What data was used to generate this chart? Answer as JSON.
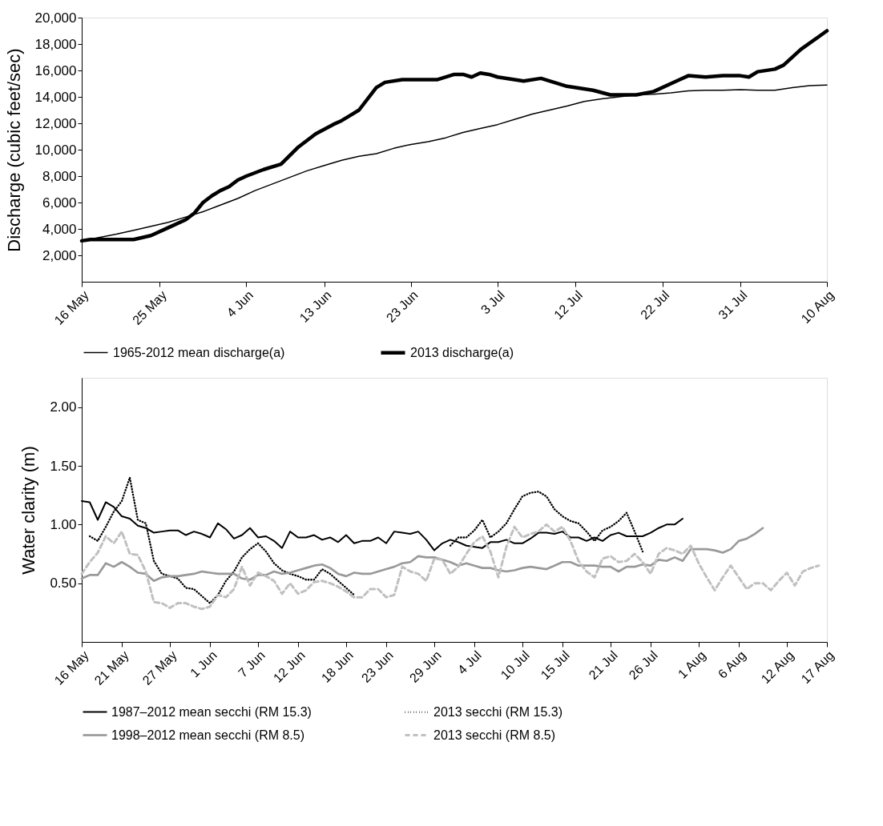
{
  "chart_data": [
    {
      "type": "line",
      "ylabel": "Discharge (cubic feet/sec)",
      "xlim": [
        "2013-05-16",
        "2013-08-10"
      ],
      "xticks": [
        {
          "value": "2013-05-16",
          "label": "16 May"
        },
        {
          "value": "2013-05-25",
          "label": "25 May"
        },
        {
          "value": "2013-06-04",
          "label": "4 Jun"
        },
        {
          "value": "2013-06-13",
          "label": "13 Jun"
        },
        {
          "value": "2013-06-23",
          "label": "23 Jun"
        },
        {
          "value": "2013-07-03",
          "label": "3 Jul"
        },
        {
          "value": "2013-07-12",
          "label": "12 Jul"
        },
        {
          "value": "2013-07-22",
          "label": "22 Jul"
        },
        {
          "value": "2013-07-31",
          "label": "31 Jul"
        },
        {
          "value": "2013-08-10",
          "label": "10 Aug"
        }
      ],
      "ylim": [
        0,
        20000
      ],
      "yticks": [
        {
          "value": 2000,
          "label": "2,000"
        },
        {
          "value": 4000,
          "label": "4,000"
        },
        {
          "value": 6000,
          "label": "6,000"
        },
        {
          "value": 8000,
          "label": "8,000"
        },
        {
          "value": 10000,
          "label": "10,000"
        },
        {
          "value": 12000,
          "label": "12,000"
        },
        {
          "value": 14000,
          "label": "14,000"
        },
        {
          "value": 16000,
          "label": "16,000"
        },
        {
          "value": 18000,
          "label": "18,000"
        },
        {
          "value": 20000,
          "label": "20,000"
        }
      ],
      "grid": false,
      "legend": "bottom",
      "marker": "none",
      "series": [
        {
          "name": "1965-2012 mean discharge(a)",
          "color": "#000000",
          "line_style": "solid",
          "x": [
            "2013-05-16",
            "2013-05-18",
            "2013-05-20",
            "2013-05-22",
            "2013-05-24",
            "2013-05-26",
            "2013-05-28",
            "2013-05-30",
            "2013-06-01",
            "2013-06-03",
            "2013-06-05",
            "2013-06-07",
            "2013-06-09",
            "2013-06-11",
            "2013-06-13",
            "2013-06-15",
            "2013-06-17",
            "2013-06-19",
            "2013-06-21",
            "2013-06-23",
            "2013-06-25",
            "2013-06-27",
            "2013-06-29",
            "2013-07-01",
            "2013-07-03",
            "2013-07-05",
            "2013-07-07",
            "2013-07-09",
            "2013-07-11",
            "2013-07-13",
            "2013-07-15",
            "2013-07-17",
            "2013-07-19",
            "2013-07-21",
            "2013-07-23",
            "2013-07-25",
            "2013-07-27",
            "2013-07-29",
            "2013-07-31",
            "2013-08-02",
            "2013-08-04",
            "2013-08-06",
            "2013-08-08",
            "2013-08-10"
          ],
          "values": [
            3100,
            3350,
            3600,
            3900,
            4200,
            4500,
            4900,
            5300,
            5800,
            6300,
            6900,
            7400,
            7900,
            8400,
            8800,
            9200,
            9500,
            9700,
            10100,
            10400,
            10600,
            10900,
            11300,
            11600,
            11900,
            12300,
            12700,
            13000,
            13300,
            13650,
            13850,
            14000,
            14150,
            14200,
            14300,
            14450,
            14500,
            14500,
            14550,
            14500,
            14500,
            14700,
            14850,
            14900
          ]
        },
        {
          "name": "2013 discharge(a)",
          "color": "#000000",
          "line_style": "solid",
          "x": [
            "2013-05-16",
            "2013-05-17",
            "2013-05-19",
            "2013-05-22",
            "2013-05-24",
            "2013-05-26",
            "2013-05-28",
            "2013-05-29",
            "2013-05-30",
            "2013-05-31",
            "2013-06-01",
            "2013-06-02",
            "2013-06-03",
            "2013-06-04",
            "2013-06-06",
            "2013-06-08",
            "2013-06-10",
            "2013-06-12",
            "2013-06-14",
            "2013-06-15",
            "2013-06-16",
            "2013-06-17",
            "2013-06-19",
            "2013-06-20",
            "2013-06-22",
            "2013-06-26",
            "2013-06-28",
            "2013-06-29",
            "2013-06-30",
            "2013-07-01",
            "2013-07-02",
            "2013-07-03",
            "2013-07-06",
            "2013-07-08",
            "2013-07-11",
            "2013-07-14",
            "2013-07-16",
            "2013-07-19",
            "2013-07-21",
            "2013-07-24",
            "2013-07-25",
            "2013-07-27",
            "2013-07-29",
            "2013-07-31",
            "2013-08-01",
            "2013-08-02",
            "2013-08-04",
            "2013-08-05",
            "2013-08-07",
            "2013-08-10"
          ],
          "values": [
            3100,
            3200,
            3200,
            3200,
            3500,
            4100,
            4700,
            5200,
            6000,
            6500,
            6900,
            7200,
            7700,
            8000,
            8500,
            8900,
            10200,
            11200,
            11900,
            12200,
            12600,
            13000,
            14700,
            15100,
            15300,
            15300,
            15700,
            15700,
            15500,
            15800,
            15700,
            15500,
            15200,
            15400,
            14800,
            14500,
            14150,
            14150,
            14400,
            15300,
            15600,
            15500,
            15600,
            15600,
            15500,
            15900,
            16100,
            16400,
            17600,
            19000
          ]
        }
      ]
    },
    {
      "type": "line",
      "ylabel": "Water clarity (m)",
      "xlim": [
        "2013-05-16",
        "2013-08-17"
      ],
      "xticks": [
        {
          "value": "2013-05-16",
          "label": "16 May"
        },
        {
          "value": "2013-05-21",
          "label": "21 May"
        },
        {
          "value": "2013-05-27",
          "label": "27 May"
        },
        {
          "value": "2013-06-01",
          "label": "1 Jun"
        },
        {
          "value": "2013-06-07",
          "label": "7 Jun"
        },
        {
          "value": "2013-06-12",
          "label": "12 Jun"
        },
        {
          "value": "2013-06-18",
          "label": "18 Jun"
        },
        {
          "value": "2013-06-23",
          "label": "23 Jun"
        },
        {
          "value": "2013-06-29",
          "label": "29 Jun"
        },
        {
          "value": "2013-07-04",
          "label": "4 Jul"
        },
        {
          "value": "2013-07-10",
          "label": "10 Jul"
        },
        {
          "value": "2013-07-15",
          "label": "15 Jul"
        },
        {
          "value": "2013-07-21",
          "label": "21 Jul"
        },
        {
          "value": "2013-07-26",
          "label": "26 Jul"
        },
        {
          "value": "2013-08-01",
          "label": "1 Aug"
        },
        {
          "value": "2013-08-06",
          "label": "6 Aug"
        },
        {
          "value": "2013-08-12",
          "label": "12 Aug"
        },
        {
          "value": "2013-08-17",
          "label": "17 Aug"
        }
      ],
      "ylim": [
        0,
        2.25
      ],
      "yticks": [
        {
          "value": 0.5,
          "label": "0.50"
        },
        {
          "value": 1.0,
          "label": "1.00"
        },
        {
          "value": 1.5,
          "label": "1.50"
        },
        {
          "value": 2.0,
          "label": "2.00"
        }
      ],
      "grid": false,
      "legend": "bottom",
      "marker": "none",
      "x": [
        "2013-05-16",
        "2013-05-17",
        "2013-05-18",
        "2013-05-19",
        "2013-05-20",
        "2013-05-21",
        "2013-05-22",
        "2013-05-23",
        "2013-05-24",
        "2013-05-25",
        "2013-05-26",
        "2013-05-27",
        "2013-05-28",
        "2013-05-29",
        "2013-05-30",
        "2013-05-31",
        "2013-06-01",
        "2013-06-02",
        "2013-06-03",
        "2013-06-04",
        "2013-06-05",
        "2013-06-06",
        "2013-06-07",
        "2013-06-08",
        "2013-06-09",
        "2013-06-10",
        "2013-06-11",
        "2013-06-12",
        "2013-06-13",
        "2013-06-14",
        "2013-06-15",
        "2013-06-16",
        "2013-06-17",
        "2013-06-18",
        "2013-06-19",
        "2013-06-20",
        "2013-06-21",
        "2013-06-22",
        "2013-06-23",
        "2013-06-24",
        "2013-06-25",
        "2013-06-26",
        "2013-06-27",
        "2013-06-28",
        "2013-06-29",
        "2013-06-30",
        "2013-07-01",
        "2013-07-02",
        "2013-07-03",
        "2013-07-04",
        "2013-07-05",
        "2013-07-06",
        "2013-07-07",
        "2013-07-08",
        "2013-07-09",
        "2013-07-10",
        "2013-07-11",
        "2013-07-12",
        "2013-07-13",
        "2013-07-14",
        "2013-07-15",
        "2013-07-16",
        "2013-07-17",
        "2013-07-18",
        "2013-07-19",
        "2013-07-20",
        "2013-07-21",
        "2013-07-22",
        "2013-07-23",
        "2013-07-24",
        "2013-07-25",
        "2013-07-26",
        "2013-07-27",
        "2013-07-28",
        "2013-07-29",
        "2013-07-30",
        "2013-07-31",
        "2013-08-01",
        "2013-08-02",
        "2013-08-03",
        "2013-08-04",
        "2013-08-05",
        "2013-08-06",
        "2013-08-07",
        "2013-08-08",
        "2013-08-09",
        "2013-08-10",
        "2013-08-11",
        "2013-08-12",
        "2013-08-13",
        "2013-08-14",
        "2013-08-15",
        "2013-08-16"
      ],
      "series": [
        {
          "name": "1987–2012 mean secchi (RM 15.3)",
          "color": "#000000",
          "line_style": "solid",
          "values": [
            1.2,
            1.19,
            1.04,
            1.19,
            1.15,
            1.07,
            1.05,
            0.99,
            0.97,
            0.93,
            0.94,
            0.95,
            0.95,
            0.91,
            0.94,
            0.92,
            0.89,
            1.01,
            0.96,
            0.88,
            0.91,
            0.97,
            0.89,
            0.9,
            0.86,
            0.8,
            0.94,
            0.89,
            0.89,
            0.91,
            0.87,
            0.89,
            0.85,
            0.91,
            0.84,
            0.86,
            0.86,
            0.89,
            0.84,
            0.94,
            0.93,
            0.92,
            0.94,
            0.87,
            0.78,
            0.84,
            0.87,
            0.85,
            0.82,
            0.81,
            0.8,
            0.85,
            0.85,
            0.87,
            0.84,
            0.84,
            0.88,
            0.93,
            0.93,
            0.92,
            0.94,
            0.89,
            0.89,
            0.86,
            0.89,
            0.86,
            0.91,
            0.93,
            0.9,
            0.9,
            0.9,
            0.93,
            0.97,
            1.0,
            1.0,
            1.05,
            null,
            null,
            null,
            null,
            null,
            null,
            null,
            null,
            null,
            null,
            null,
            null,
            null,
            null,
            null,
            null,
            null
          ]
        },
        {
          "name": "2013 secchi (RM 15.3)",
          "color": "#000000",
          "line_style": "dotted",
          "values": [
            null,
            0.9,
            0.86,
            0.98,
            1.11,
            1.2,
            1.4,
            1.04,
            1.01,
            0.69,
            0.58,
            0.56,
            0.54,
            0.46,
            0.45,
            0.39,
            0.33,
            0.4,
            0.52,
            0.6,
            0.72,
            0.79,
            0.84,
            0.77,
            0.67,
            0.61,
            0.58,
            0.56,
            0.53,
            0.53,
            0.62,
            0.58,
            0.52,
            0.46,
            0.4,
            null,
            null,
            null,
            null,
            null,
            null,
            null,
            null,
            null,
            null,
            null,
            0.82,
            0.89,
            0.89,
            0.95,
            1.04,
            0.89,
            0.94,
            1.01,
            1.13,
            1.24,
            1.27,
            1.28,
            1.24,
            1.13,
            1.07,
            1.03,
            1.01,
            0.94,
            0.86,
            0.95,
            0.98,
            1.03,
            1.1,
            0.94,
            0.77,
            null,
            null,
            null,
            null,
            null,
            null,
            null,
            null,
            null,
            null,
            null,
            null,
            null,
            null,
            null,
            null,
            null,
            null,
            null,
            null,
            null,
            null
          ]
        },
        {
          "name": "1998–2012 mean secchi (RM 8.5)",
          "color": "#999999",
          "line_style": "solid",
          "values": [
            0.54,
            0.57,
            0.57,
            0.67,
            0.64,
            0.68,
            0.64,
            0.59,
            0.58,
            0.52,
            0.55,
            0.56,
            0.56,
            0.57,
            0.58,
            0.6,
            0.59,
            0.58,
            0.58,
            0.58,
            0.54,
            0.53,
            0.57,
            0.57,
            0.6,
            0.58,
            0.59,
            0.61,
            0.63,
            0.65,
            0.66,
            0.63,
            0.58,
            0.56,
            0.59,
            0.58,
            0.58,
            0.6,
            0.62,
            0.64,
            0.67,
            0.68,
            0.73,
            0.72,
            0.72,
            0.7,
            0.68,
            0.65,
            0.67,
            0.65,
            0.63,
            0.63,
            0.61,
            0.6,
            0.61,
            0.63,
            0.64,
            0.63,
            0.62,
            0.65,
            0.68,
            0.68,
            0.65,
            0.65,
            0.65,
            0.64,
            0.64,
            0.6,
            0.64,
            0.64,
            0.66,
            0.65,
            0.7,
            0.69,
            0.72,
            0.69,
            0.79,
            0.79,
            0.79,
            0.78,
            0.76,
            0.79,
            0.86,
            0.88,
            0.92,
            0.97,
            null,
            null,
            null,
            null,
            null,
            null,
            null
          ]
        },
        {
          "name": "2013 secchi (RM 8.5)",
          "color": "#c0c0c0",
          "line_style": "dashed",
          "values": [
            0.58,
            0.68,
            0.76,
            0.9,
            0.84,
            0.94,
            0.75,
            0.74,
            0.6,
            0.34,
            0.33,
            0.29,
            0.33,
            0.33,
            0.3,
            0.28,
            0.3,
            0.4,
            0.38,
            0.45,
            0.64,
            0.48,
            0.59,
            0.56,
            0.52,
            0.41,
            0.5,
            0.41,
            0.44,
            0.51,
            0.52,
            0.5,
            0.47,
            0.43,
            0.38,
            0.38,
            0.45,
            0.45,
            0.38,
            0.4,
            0.64,
            0.6,
            0.58,
            0.52,
            0.71,
            0.7,
            0.58,
            0.64,
            0.75,
            0.85,
            0.9,
            0.77,
            0.55,
            0.81,
            0.98,
            0.89,
            0.92,
            0.94,
            1.0,
            0.94,
            0.98,
            0.86,
            0.69,
            0.6,
            0.55,
            0.71,
            0.73,
            0.68,
            0.69,
            0.75,
            0.68,
            0.58,
            0.75,
            0.8,
            0.78,
            0.75,
            0.82,
            0.67,
            0.55,
            0.44,
            0.55,
            0.65,
            0.55,
            0.45,
            0.5,
            0.5,
            0.44,
            0.52,
            0.59,
            0.48,
            0.6,
            0.63,
            0.65
          ]
        }
      ]
    }
  ]
}
